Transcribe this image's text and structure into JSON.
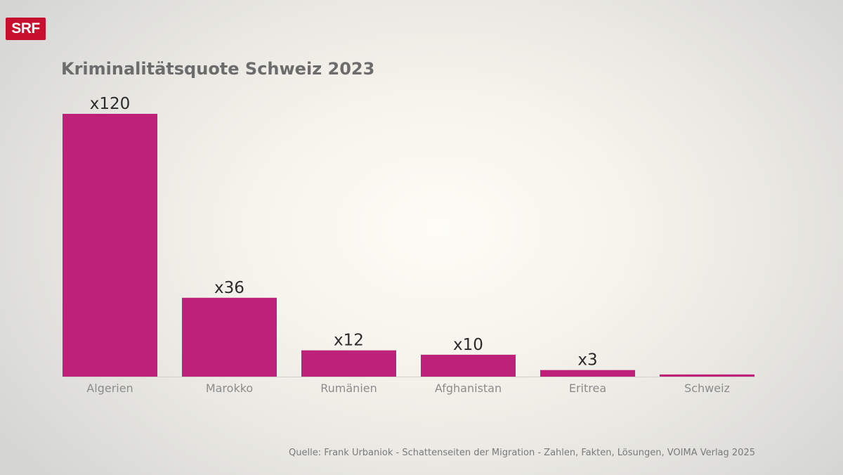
{
  "logo": {
    "text": "SRF",
    "color": "#c8102e"
  },
  "title": "Kriminalitätsquote Schweiz 2023",
  "source": "Quelle: Frank Urbaniok - Schattenseiten der Migration - Zahlen, Fakten, Lösungen, VOIMA Verlag 2025",
  "colors": {
    "bar": "#bd2179",
    "value_label": "#2b2b2b",
    "category_label": "#8c8c8c",
    "title": "#6c6c6c"
  },
  "chart_data": {
    "type": "bar",
    "title": "Kriminalitätsquote Schweiz 2023",
    "categories": [
      "Algerien",
      "Marokko",
      "Rumänien",
      "Afghanistan",
      "Eritrea",
      "Schweiz"
    ],
    "values": [
      120,
      36,
      12,
      10,
      3,
      1
    ],
    "value_labels": [
      "x120",
      "x36",
      "x12",
      "x10",
      "x3",
      ""
    ],
    "ylim": [
      0,
      120
    ],
    "grid": false,
    "legend": "none"
  }
}
